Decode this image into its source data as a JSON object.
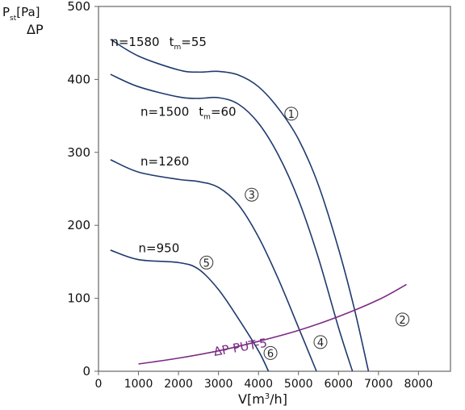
{
  "chart_data": {
    "type": "line",
    "title": "",
    "ylabel": {
      "main": "P",
      "sub": "st",
      "tail": "[Pa]",
      "second": "ΔP"
    },
    "xlabel": {
      "main": "V[m",
      "sup": "3",
      "tail": "/h]"
    },
    "xlim": [
      0,
      8800
    ],
    "ylim": [
      0,
      500
    ],
    "xticks": [
      0,
      1000,
      2000,
      3000,
      4000,
      5000,
      6000,
      7000,
      8000
    ],
    "yticks": [
      0,
      100,
      200,
      300,
      400,
      500
    ],
    "grid": false,
    "colors": {
      "fan": "#1f3a6e",
      "resistance": "#7b2a84",
      "axis": "#666666",
      "text": "#111111"
    },
    "series": [
      {
        "x": [
          300,
          1000,
          2000,
          2500,
          3000,
          3500,
          4000,
          4500,
          5000,
          5500,
          6000,
          6400,
          6750
        ],
        "y": [
          455,
          432,
          413,
          410,
          411,
          406,
          390,
          360,
          318,
          255,
          168,
          85,
          0
        ]
      },
      {
        "x": [
          300,
          1000,
          2000,
          2500,
          3000,
          3500,
          4000,
          4500,
          5000,
          5500,
          6000,
          6350
        ],
        "y": [
          407,
          390,
          376,
          374,
          375,
          366,
          340,
          296,
          235,
          155,
          60,
          0
        ]
      },
      {
        "x": [
          300,
          1000,
          2000,
          2500,
          3000,
          3500,
          4000,
          4500,
          5000,
          5450
        ],
        "y": [
          290,
          273,
          263,
          260,
          252,
          228,
          184,
          126,
          60,
          0
        ]
      },
      {
        "x": [
          300,
          1000,
          2000,
          2500,
          3000,
          3500,
          4000,
          4250
        ],
        "y": [
          166,
          153,
          149,
          140,
          112,
          72,
          28,
          0
        ]
      },
      {
        "x": [
          1000,
          2000,
          3000,
          4000,
          5000,
          6000,
          7000,
          7700
        ],
        "y": [
          10,
          18,
          28,
          41,
          56,
          75,
          98,
          119
        ]
      }
    ],
    "annotations": [
      {
        "series": 0,
        "n": "n=1580",
        "t_main": "t",
        "t_sub": "m",
        "t_val": "=55",
        "x": 310,
        "y": 446
      },
      {
        "series": 1,
        "n": "n=1500",
        "t_main": "t",
        "t_sub": "m",
        "t_val": "=60",
        "x": 1050,
        "y": 350
      },
      {
        "series": 2,
        "n": "n=1260",
        "x": 1050,
        "y": 282
      },
      {
        "series": 3,
        "n": "n=950",
        "x": 1000,
        "y": 163
      },
      {
        "series": 4,
        "n": "ΔP PUT-5",
        "x": 2900,
        "y": 21,
        "rotate": -10
      }
    ],
    "markers": [
      {
        "label": "1",
        "x": 4820,
        "y": 353
      },
      {
        "label": "3",
        "x": 3830,
        "y": 242
      },
      {
        "label": "5",
        "x": 2700,
        "y": 149
      },
      {
        "label": "2",
        "x": 7600,
        "y": 71
      },
      {
        "label": "4",
        "x": 5550,
        "y": 40
      },
      {
        "label": "6",
        "x": 4300,
        "y": 25
      }
    ]
  }
}
